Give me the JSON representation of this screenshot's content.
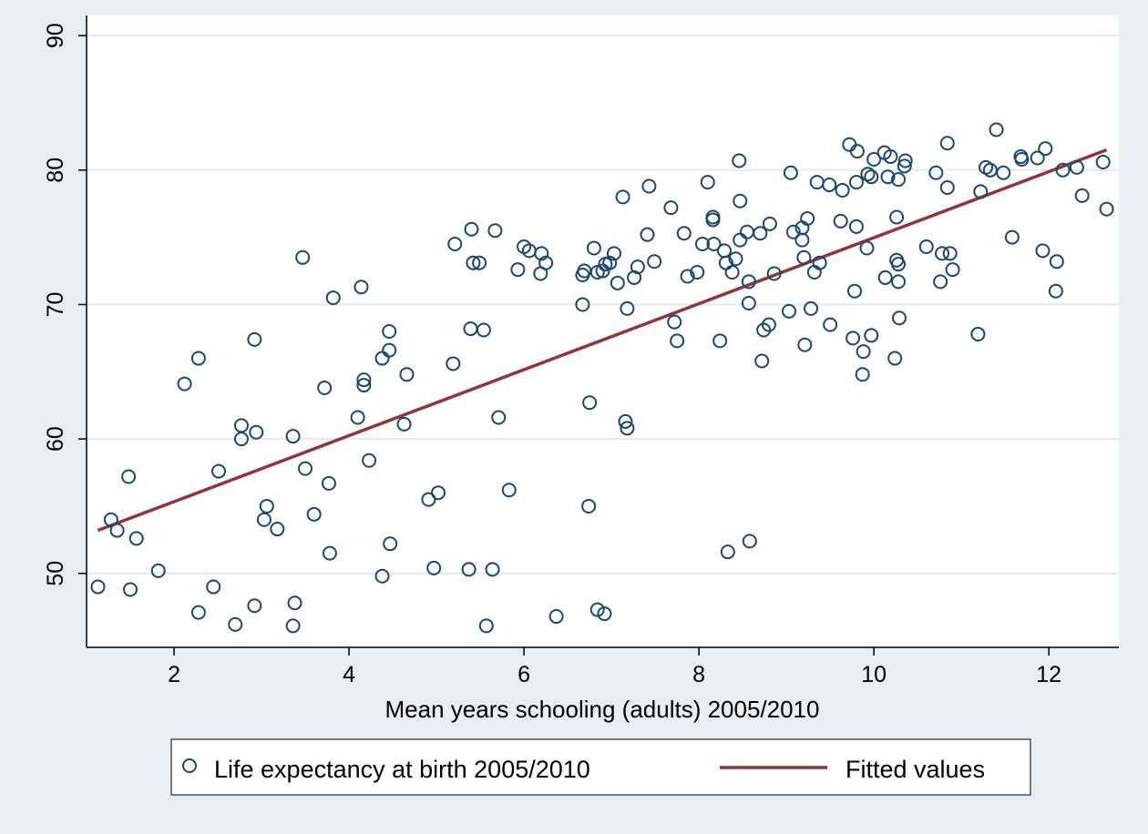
{
  "chart_data": {
    "type": "scatter",
    "title": "",
    "xlabel": "Mean years schooling (adults) 2005/2010",
    "ylabel": "",
    "xlim": [
      1.0,
      12.8
    ],
    "ylim": [
      44.5,
      91.5
    ],
    "xticks": [
      2,
      4,
      6,
      8,
      10,
      12
    ],
    "yticks": [
      50,
      60,
      70,
      80,
      90
    ],
    "xtick_labels": [
      "2",
      "4",
      "6",
      "8",
      "10",
      "12"
    ],
    "ytick_labels": [
      "50",
      "60",
      "70",
      "80",
      "90"
    ],
    "grid": "horizontal",
    "legend_position": "bottom",
    "colors": {
      "background": "#e9eef2",
      "plot_background": "#ffffff",
      "gridline": "#e3eaef",
      "marker": "#1a476f",
      "fit_line": "#90353b"
    },
    "series": [
      {
        "name": "Life expectancy at birth 2005/2010",
        "kind": "scatter",
        "points": [
          [
            1.13,
            49.0
          ],
          [
            1.28,
            54.0
          ],
          [
            1.35,
            53.2
          ],
          [
            1.48,
            57.2
          ],
          [
            1.5,
            48.8
          ],
          [
            1.57,
            52.6
          ],
          [
            1.82,
            50.2
          ],
          [
            2.12,
            64.1
          ],
          [
            2.28,
            66.0
          ],
          [
            2.28,
            47.1
          ],
          [
            2.45,
            49.0
          ],
          [
            2.51,
            57.6
          ],
          [
            2.7,
            46.2
          ],
          [
            2.77,
            61.0
          ],
          [
            2.77,
            60.0
          ],
          [
            2.92,
            67.4
          ],
          [
            2.92,
            47.6
          ],
          [
            2.94,
            60.5
          ],
          [
            3.03,
            54.0
          ],
          [
            3.06,
            55.0
          ],
          [
            3.18,
            53.3
          ],
          [
            3.36,
            60.2
          ],
          [
            3.38,
            47.8
          ],
          [
            3.36,
            46.1
          ],
          [
            3.47,
            73.5
          ],
          [
            3.5,
            57.8
          ],
          [
            3.6,
            54.4
          ],
          [
            3.72,
            63.8
          ],
          [
            3.77,
            56.7
          ],
          [
            3.78,
            51.5
          ],
          [
            3.82,
            70.5
          ],
          [
            4.1,
            61.6
          ],
          [
            4.14,
            71.3
          ],
          [
            4.17,
            64.4
          ],
          [
            4.17,
            64.0
          ],
          [
            4.23,
            58.4
          ],
          [
            4.38,
            66.0
          ],
          [
            4.38,
            49.8
          ],
          [
            4.46,
            66.6
          ],
          [
            4.46,
            68.0
          ],
          [
            4.47,
            52.2
          ],
          [
            4.63,
            61.1
          ],
          [
            4.66,
            64.8
          ],
          [
            4.91,
            55.5
          ],
          [
            4.97,
            50.4
          ],
          [
            5.02,
            56.0
          ],
          [
            5.19,
            65.6
          ],
          [
            5.21,
            74.5
          ],
          [
            5.37,
            50.3
          ],
          [
            5.39,
            68.2
          ],
          [
            5.4,
            75.6
          ],
          [
            5.42,
            73.1
          ],
          [
            5.49,
            73.1
          ],
          [
            5.54,
            68.1
          ],
          [
            5.57,
            46.1
          ],
          [
            5.64,
            50.3
          ],
          [
            5.67,
            75.5
          ],
          [
            5.71,
            61.6
          ],
          [
            5.83,
            56.2
          ],
          [
            5.93,
            72.6
          ],
          [
            6.0,
            74.3
          ],
          [
            6.06,
            74.0
          ],
          [
            6.19,
            72.3
          ],
          [
            6.2,
            73.8
          ],
          [
            6.25,
            73.1
          ],
          [
            6.37,
            46.8
          ],
          [
            6.67,
            72.2
          ],
          [
            6.67,
            70.0
          ],
          [
            6.69,
            72.5
          ],
          [
            6.74,
            55.0
          ],
          [
            6.75,
            62.7
          ],
          [
            6.8,
            74.2
          ],
          [
            6.84,
            72.4
          ],
          [
            6.84,
            47.3
          ],
          [
            6.9,
            72.5
          ],
          [
            6.92,
            47.0
          ],
          [
            6.93,
            73.0
          ],
          [
            6.98,
            73.1
          ],
          [
            7.03,
            73.8
          ],
          [
            7.07,
            71.6
          ],
          [
            7.13,
            78.0
          ],
          [
            7.16,
            61.3
          ],
          [
            7.18,
            60.8
          ],
          [
            7.18,
            69.7
          ],
          [
            7.26,
            72.0
          ],
          [
            7.3,
            72.8
          ],
          [
            7.41,
            75.2
          ],
          [
            7.43,
            78.8
          ],
          [
            7.49,
            73.2
          ],
          [
            7.68,
            77.2
          ],
          [
            7.72,
            68.7
          ],
          [
            7.75,
            67.3
          ],
          [
            7.83,
            75.3
          ],
          [
            7.87,
            72.1
          ],
          [
            7.98,
            72.4
          ],
          [
            8.04,
            74.5
          ],
          [
            8.1,
            79.1
          ],
          [
            8.16,
            76.5
          ],
          [
            8.16,
            76.3
          ],
          [
            8.17,
            74.5
          ],
          [
            8.24,
            67.3
          ],
          [
            8.29,
            74.0
          ],
          [
            8.31,
            73.1
          ],
          [
            8.33,
            51.6
          ],
          [
            8.38,
            72.4
          ],
          [
            8.42,
            73.4
          ],
          [
            8.46,
            80.7
          ],
          [
            8.47,
            77.7
          ],
          [
            8.47,
            74.8
          ],
          [
            8.55,
            75.4
          ],
          [
            8.57,
            70.1
          ],
          [
            8.57,
            71.7
          ],
          [
            8.58,
            52.4
          ],
          [
            8.7,
            75.3
          ],
          [
            8.72,
            65.8
          ],
          [
            8.74,
            68.1
          ],
          [
            8.8,
            68.5
          ],
          [
            8.81,
            76.0
          ],
          [
            8.86,
            72.3
          ],
          [
            9.03,
            69.5
          ],
          [
            9.05,
            79.8
          ],
          [
            9.08,
            75.4
          ],
          [
            9.18,
            75.7
          ],
          [
            9.18,
            74.8
          ],
          [
            9.2,
            73.5
          ],
          [
            9.21,
            67.0
          ],
          [
            9.24,
            76.4
          ],
          [
            9.28,
            69.7
          ],
          [
            9.32,
            72.4
          ],
          [
            9.35,
            79.1
          ],
          [
            9.38,
            73.1
          ],
          [
            9.49,
            78.9
          ],
          [
            9.5,
            68.5
          ],
          [
            9.62,
            76.2
          ],
          [
            9.64,
            78.5
          ],
          [
            9.72,
            81.9
          ],
          [
            9.76,
            67.5
          ],
          [
            9.78,
            71.0
          ],
          [
            9.8,
            79.1
          ],
          [
            9.8,
            75.8
          ],
          [
            9.81,
            81.4
          ],
          [
            9.87,
            64.8
          ],
          [
            9.88,
            66.5
          ],
          [
            9.92,
            74.2
          ],
          [
            9.93,
            79.7
          ],
          [
            9.97,
            79.5
          ],
          [
            9.97,
            67.7
          ],
          [
            10.0,
            80.8
          ],
          [
            10.12,
            81.3
          ],
          [
            10.13,
            72.0
          ],
          [
            10.16,
            79.5
          ],
          [
            10.19,
            81.0
          ],
          [
            10.24,
            66.0
          ],
          [
            10.26,
            76.5
          ],
          [
            10.26,
            73.3
          ],
          [
            10.28,
            79.3
          ],
          [
            10.28,
            73.0
          ],
          [
            10.28,
            71.7
          ],
          [
            10.29,
            69.0
          ],
          [
            10.35,
            80.3
          ],
          [
            10.36,
            80.7
          ],
          [
            10.6,
            74.3
          ],
          [
            10.71,
            79.8
          ],
          [
            10.76,
            71.7
          ],
          [
            10.78,
            73.8
          ],
          [
            10.84,
            82.0
          ],
          [
            10.84,
            78.7
          ],
          [
            10.87,
            73.8
          ],
          [
            10.9,
            72.6
          ],
          [
            11.19,
            67.8
          ],
          [
            11.22,
            78.4
          ],
          [
            11.28,
            80.2
          ],
          [
            11.33,
            80.0
          ],
          [
            11.4,
            83.0
          ],
          [
            11.48,
            79.8
          ],
          [
            11.58,
            75.0
          ],
          [
            11.68,
            81.0
          ],
          [
            11.69,
            80.8
          ],
          [
            11.87,
            80.9
          ],
          [
            11.93,
            74.0
          ],
          [
            11.96,
            81.6
          ],
          [
            12.08,
            71.0
          ],
          [
            12.09,
            73.2
          ],
          [
            12.16,
            80.0
          ],
          [
            12.32,
            80.2
          ],
          [
            12.38,
            78.1
          ],
          [
            12.62,
            80.6
          ],
          [
            12.66,
            77.1
          ]
        ]
      },
      {
        "name": "Fitted values",
        "kind": "line",
        "points": [
          [
            1.13,
            53.2
          ],
          [
            12.66,
            81.5
          ]
        ]
      }
    ]
  }
}
